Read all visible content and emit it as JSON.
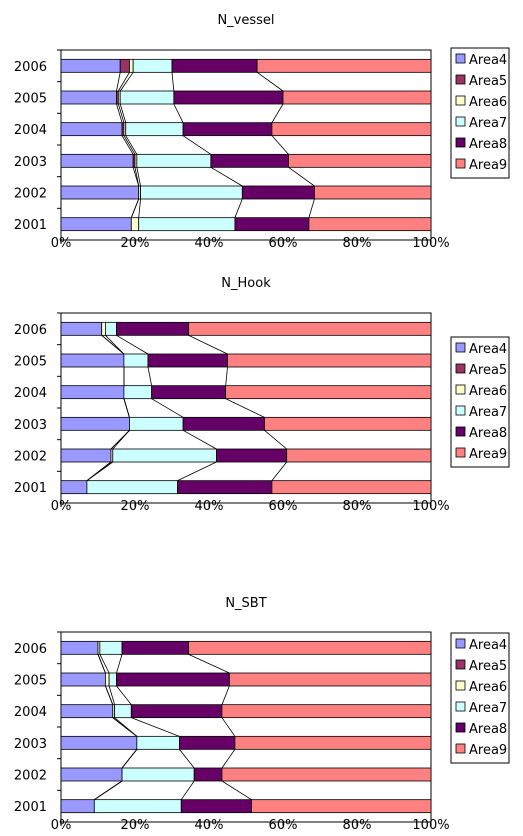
{
  "chart_data": [
    {
      "type": "bar",
      "orientation": "horizontal",
      "stacked": "percent",
      "title": "N_vessel",
      "categories": [
        "2006",
        "2005",
        "2004",
        "2003",
        "2002",
        "2001"
      ],
      "x_ticks": [
        "0%",
        "20%",
        "40%",
        "60%",
        "80%",
        "100%"
      ],
      "xlim": [
        0,
        100
      ],
      "grid": false,
      "legend": "right",
      "series": [
        {
          "name": "Area4",
          "color": "#9999ff",
          "values": [
            16,
            15,
            16.5,
            19.5,
            21,
            19
          ]
        },
        {
          "name": "Area5",
          "color": "#993366",
          "values": [
            2.5,
            0.5,
            0.5,
            0.5,
            0,
            0
          ]
        },
        {
          "name": "Area6",
          "color": "#ffffcc",
          "values": [
            1,
            0.5,
            0.5,
            0.5,
            0.5,
            2
          ]
        },
        {
          "name": "Area7",
          "color": "#ccffff",
          "values": [
            10.5,
            14.5,
            15.5,
            20,
            27.5,
            26
          ]
        },
        {
          "name": "Area8",
          "color": "#660066",
          "values": [
            23,
            29.5,
            24,
            21,
            19.5,
            20
          ]
        },
        {
          "name": "Area9",
          "color": "#ff8080",
          "values": [
            47,
            40,
            43,
            38.5,
            31.5,
            33
          ]
        }
      ]
    },
    {
      "type": "bar",
      "orientation": "horizontal",
      "stacked": "percent",
      "title": "N_Hook",
      "categories": [
        "2006",
        "2005",
        "2004",
        "2003",
        "2002",
        "2001"
      ],
      "x_ticks": [
        "0%",
        "20%",
        "40%",
        "60%",
        "80%",
        "100%"
      ],
      "xlim": [
        0,
        100
      ],
      "grid": false,
      "legend": "right",
      "series": [
        {
          "name": "Area4",
          "color": "#9999ff",
          "values": [
            11,
            17,
            17,
            18.5,
            13.5,
            7
          ]
        },
        {
          "name": "Area5",
          "color": "#993366",
          "values": [
            0,
            0,
            0,
            0,
            0,
            0
          ]
        },
        {
          "name": "Area6",
          "color": "#ffffcc",
          "values": [
            1,
            0,
            0,
            0,
            0.5,
            0
          ]
        },
        {
          "name": "Area7",
          "color": "#ccffff",
          "values": [
            3,
            6.5,
            7.5,
            14.5,
            28,
            24.5
          ]
        },
        {
          "name": "Area8",
          "color": "#660066",
          "values": [
            19.5,
            21.5,
            20,
            22,
            19,
            25.5
          ]
        },
        {
          "name": "Area9",
          "color": "#ff8080",
          "values": [
            65.5,
            55,
            55.5,
            45,
            39,
            43
          ]
        }
      ]
    },
    {
      "type": "bar",
      "orientation": "horizontal",
      "stacked": "percent",
      "title": "N_SBT",
      "categories": [
        "2006",
        "2005",
        "2004",
        "2003",
        "2002",
        "2001"
      ],
      "x_ticks": [
        "0%",
        "20%",
        "40%",
        "60%",
        "80%",
        "100%"
      ],
      "xlim": [
        0,
        100
      ],
      "grid": false,
      "legend": "right",
      "series": [
        {
          "name": "Area4",
          "color": "#9999ff",
          "values": [
            10,
            12,
            14,
            20.5,
            16.5,
            9
          ]
        },
        {
          "name": "Area5",
          "color": "#993366",
          "values": [
            0,
            0,
            0,
            0,
            0,
            0
          ]
        },
        {
          "name": "Area6",
          "color": "#ffffcc",
          "values": [
            0.5,
            1,
            0.5,
            0,
            0,
            0
          ]
        },
        {
          "name": "Area7",
          "color": "#ccffff",
          "values": [
            6,
            2,
            4.5,
            11.5,
            19.5,
            23.5
          ]
        },
        {
          "name": "Area8",
          "color": "#660066",
          "values": [
            18,
            30.5,
            24.5,
            15,
            7.5,
            19
          ]
        },
        {
          "name": "Area9",
          "color": "#ff8080",
          "values": [
            65.5,
            54.5,
            56.5,
            53,
            56.5,
            48.5
          ]
        }
      ]
    }
  ]
}
